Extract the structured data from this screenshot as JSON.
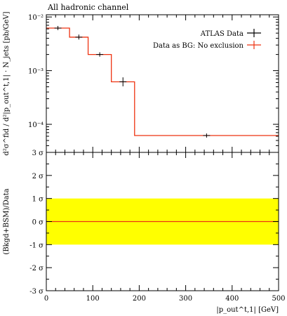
{
  "chart_data": [
    {
      "type": "line",
      "title": "All hadronic channel",
      "ylabel": "d²σ^fid / d²|p_out^t,1| · N_jets [pb/GeV]",
      "yscale": "log",
      "ylim": [
        3e-05,
        0.011
      ],
      "xlim": [
        0,
        500
      ],
      "yticks": [
        {
          "value": 0.01,
          "label": "10⁻²"
        },
        {
          "value": 0.001,
          "label": "10⁻³"
        },
        {
          "value": 0.0001,
          "label": "10⁻⁴"
        }
      ],
      "legend": "top-right",
      "series": [
        {
          "name": "ATLAS Data",
          "color": "#000000",
          "style": "points-with-errorbars",
          "points": [
            {
              "x": 25,
              "y": 0.0062,
              "yerr_lo": 0.0057,
              "yerr_hi": 0.0068
            },
            {
              "x": 70,
              "y": 0.0042,
              "yerr_lo": 0.0038,
              "yerr_hi": 0.0047
            },
            {
              "x": 115,
              "y": 0.002,
              "yerr_lo": 0.00182,
              "yerr_hi": 0.0022
            },
            {
              "x": 165,
              "y": 0.00062,
              "yerr_lo": 0.00051,
              "yerr_hi": 0.00075
            },
            {
              "x": 345,
              "y": 6.18e-05,
              "yerr_lo": 5.65e-05,
              "yerr_hi": 6.75e-05
            }
          ]
        },
        {
          "name": "Data as BG: No exclusion",
          "color": "#ee3311",
          "style": "histogram",
          "bins": [
            {
              "x0": 0,
              "x1": 50,
              "y": 0.0062
            },
            {
              "x0": 50,
              "x1": 90,
              "y": 0.0042
            },
            {
              "x0": 90,
              "x1": 140,
              "y": 0.002
            },
            {
              "x0": 140,
              "x1": 190,
              "y": 0.00062
            },
            {
              "x0": 190,
              "x1": 500,
              "y": 6.18e-05
            }
          ]
        }
      ]
    },
    {
      "type": "line",
      "xlabel": "|p_out^t,1| [GeV]",
      "ylabel": "(Bkgd+BSM)/Data",
      "xlim": [
        0,
        500
      ],
      "ylim": [
        -3,
        3
      ],
      "xticks": [
        0,
        100,
        200,
        300,
        400,
        500
      ],
      "yticks": [
        {
          "value": 3,
          "label": "3 σ"
        },
        {
          "value": 2,
          "label": "2 σ"
        },
        {
          "value": 1,
          "label": "1 σ"
        },
        {
          "value": 0,
          "label": "0 σ"
        },
        {
          "value": -1,
          "label": "-1 σ"
        },
        {
          "value": -2,
          "label": "-2 σ"
        },
        {
          "value": -3,
          "label": "-3 σ"
        }
      ],
      "band": {
        "low": -1,
        "high": 1,
        "color": "#ffff00"
      },
      "series": [
        {
          "color": "#ee3311",
          "x": [
            0,
            500
          ],
          "y": [
            0,
            0
          ]
        }
      ]
    }
  ]
}
